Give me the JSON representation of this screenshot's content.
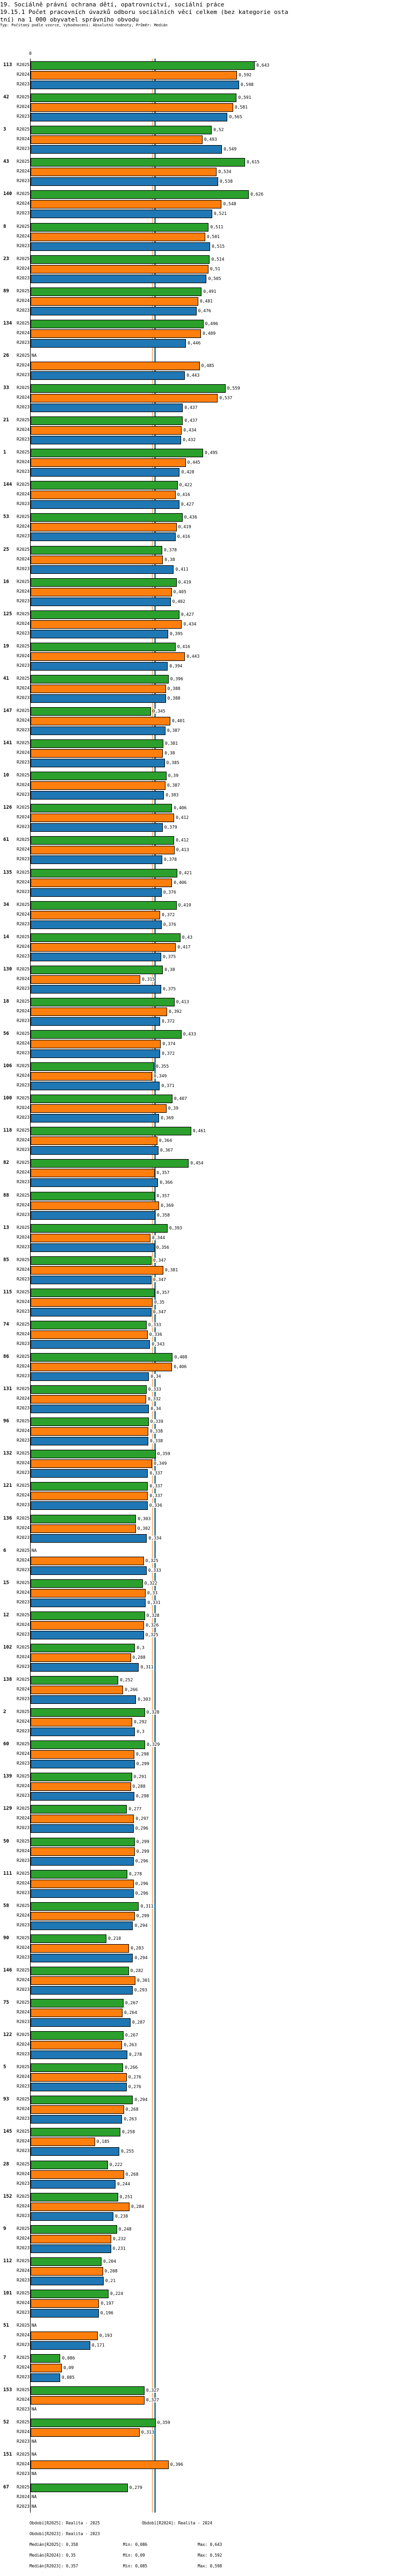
{
  "header": {
    "title_line1": "19. Sociálně právní ochrana dětí, opatrovnictví, sociální práce",
    "title_line2": "19.15.1 Počet pracovních úvazků odboru sociálních věcí celkem (bez kategorie osta",
    "title_line3": "tní) na 1 000 obyvatel správního obvodu",
    "subtitle": "Typ: Počítaný podle vzorce, Vyhodnocení: Absolutní hodnoty, Průměr: Medián"
  },
  "chart_data": {
    "type": "bar",
    "orientation": "horizontal",
    "x_tick_label": "0",
    "na_label": "NA",
    "series": [
      {
        "name": "R2025",
        "color": "#2ca02c"
      },
      {
        "name": "R2024",
        "color": "#ff7f0e"
      },
      {
        "name": "R2023",
        "color": "#1f77b4"
      }
    ],
    "groups": [
      {
        "label": "113",
        "values": [
          0.643,
          0.592,
          0.598
        ]
      },
      {
        "label": "42",
        "values": [
          0.591,
          0.581,
          0.565
        ]
      },
      {
        "label": "3",
        "values": [
          0.52,
          0.493,
          0.549
        ]
      },
      {
        "label": "43",
        "values": [
          0.615,
          0.534,
          0.538
        ]
      },
      {
        "label": "140",
        "values": [
          0.626,
          0.548,
          0.521
        ]
      },
      {
        "label": "8",
        "values": [
          0.511,
          0.501,
          0.515
        ]
      },
      {
        "label": "23",
        "values": [
          0.514,
          0.51,
          0.505
        ]
      },
      {
        "label": "89",
        "values": [
          0.491,
          0.481,
          0.476
        ]
      },
      {
        "label": "134",
        "values": [
          0.496,
          0.489,
          0.446
        ]
      },
      {
        "label": "26",
        "values": [
          null,
          0.485,
          0.443
        ]
      },
      {
        "label": "33",
        "values": [
          0.559,
          0.537,
          0.437
        ]
      },
      {
        "label": "21",
        "values": [
          0.437,
          0.434,
          0.432
        ]
      },
      {
        "label": "1",
        "values": [
          0.495,
          0.445,
          0.428
        ]
      },
      {
        "label": "144",
        "values": [
          0.422,
          0.416,
          0.427
        ]
      },
      {
        "label": "53",
        "values": [
          0.436,
          0.419,
          0.416
        ]
      },
      {
        "label": "25",
        "values": [
          0.378,
          0.38,
          0.411
        ]
      },
      {
        "label": "16",
        "values": [
          0.419,
          0.405,
          0.402
        ]
      },
      {
        "label": "125",
        "values": [
          0.427,
          0.434,
          0.395
        ]
      },
      {
        "label": "19",
        "values": [
          0.416,
          0.443,
          0.394
        ]
      },
      {
        "label": "41",
        "values": [
          0.396,
          0.388,
          0.388
        ]
      },
      {
        "label": "147",
        "values": [
          0.345,
          0.401,
          0.387
        ]
      },
      {
        "label": "141",
        "values": [
          0.381,
          0.38,
          0.385
        ]
      },
      {
        "label": "10",
        "values": [
          0.39,
          0.387,
          0.383
        ]
      },
      {
        "label": "126",
        "values": [
          0.406,
          0.412,
          0.379
        ]
      },
      {
        "label": "61",
        "values": [
          0.412,
          0.413,
          0.378
        ]
      },
      {
        "label": "135",
        "values": [
          0.421,
          0.406,
          0.376
        ]
      },
      {
        "label": "34",
        "values": [
          0.419,
          0.372,
          0.376
        ]
      },
      {
        "label": "14",
        "values": [
          0.43,
          0.417,
          0.375
        ]
      },
      {
        "label": "130",
        "values": [
          0.38,
          0.315,
          0.375
        ]
      },
      {
        "label": "18",
        "values": [
          0.413,
          0.392,
          0.372
        ]
      },
      {
        "label": "56",
        "values": [
          0.433,
          0.374,
          0.372
        ]
      },
      {
        "label": "106",
        "values": [
          0.355,
          0.349,
          0.371
        ]
      },
      {
        "label": "100",
        "values": [
          0.407,
          0.39,
          0.369
        ]
      },
      {
        "label": "118",
        "values": [
          0.461,
          0.364,
          0.367
        ]
      },
      {
        "label": "82",
        "values": [
          0.454,
          0.357,
          0.366
        ]
      },
      {
        "label": "88",
        "values": [
          0.357,
          0.369,
          0.358
        ]
      },
      {
        "label": "13",
        "values": [
          0.393,
          0.344,
          0.356
        ]
      },
      {
        "label": "85",
        "values": [
          0.347,
          0.381,
          0.347
        ]
      },
      {
        "label": "115",
        "values": [
          0.357,
          0.35,
          0.347
        ]
      },
      {
        "label": "74",
        "values": [
          0.333,
          0.336,
          0.343
        ]
      },
      {
        "label": "86",
        "values": [
          0.408,
          0.406,
          0.34
        ]
      },
      {
        "label": "131",
        "values": [
          0.333,
          0.332,
          0.34
        ]
      },
      {
        "label": "96",
        "values": [
          0.339,
          0.338,
          0.338
        ]
      },
      {
        "label": "132",
        "values": [
          0.359,
          0.349,
          0.337
        ]
      },
      {
        "label": "121",
        "values": [
          0.337,
          0.337,
          0.336
        ]
      },
      {
        "label": "136",
        "values": [
          0.303,
          0.302,
          0.334
        ]
      },
      {
        "label": "6",
        "values": [
          null,
          0.325,
          0.333
        ]
      },
      {
        "label": "15",
        "values": [
          0.322,
          0.33,
          0.331
        ]
      },
      {
        "label": "12",
        "values": [
          0.328,
          0.326,
          0.325
        ]
      },
      {
        "label": "102",
        "values": [
          0.3,
          0.288,
          0.311
        ]
      },
      {
        "label": "138",
        "values": [
          0.252,
          0.266,
          0.303
        ]
      },
      {
        "label": "2",
        "values": [
          0.328,
          0.292,
          0.3
        ]
      },
      {
        "label": "60",
        "values": [
          0.329,
          0.298,
          0.299
        ]
      },
      {
        "label": "139",
        "values": [
          0.291,
          0.288,
          0.298
        ]
      },
      {
        "label": "129",
        "values": [
          0.277,
          0.297,
          0.296
        ]
      },
      {
        "label": "50",
        "values": [
          0.299,
          0.299,
          0.296
        ]
      },
      {
        "label": "111",
        "values": [
          0.278,
          0.296,
          0.296
        ]
      },
      {
        "label": "58",
        "values": [
          0.311,
          0.299,
          0.294
        ]
      },
      {
        "label": "90",
        "values": [
          0.218,
          0.283,
          0.294
        ]
      },
      {
        "label": "146",
        "values": [
          0.282,
          0.301,
          0.293
        ]
      },
      {
        "label": "75",
        "values": [
          0.267,
          0.264,
          0.287
        ]
      },
      {
        "label": "122",
        "values": [
          0.267,
          0.263,
          0.278
        ]
      },
      {
        "label": "5",
        "values": [
          0.266,
          0.276,
          0.276
        ]
      },
      {
        "label": "93",
        "values": [
          0.294,
          0.268,
          0.263
        ]
      },
      {
        "label": "145",
        "values": [
          0.258,
          0.185,
          0.255
        ]
      },
      {
        "label": "28",
        "values": [
          0.222,
          0.268,
          0.244
        ]
      },
      {
        "label": "152",
        "values": [
          0.251,
          0.284,
          0.238
        ]
      },
      {
        "label": "9",
        "values": [
          0.248,
          0.232,
          0.231
        ]
      },
      {
        "label": "112",
        "values": [
          0.204,
          0.208,
          0.21
        ]
      },
      {
        "label": "101",
        "values": [
          0.224,
          0.197,
          0.196
        ]
      },
      {
        "label": "51",
        "values": [
          null,
          0.193,
          0.171
        ]
      },
      {
        "label": "7",
        "values": [
          0.086,
          0.09,
          0.085
        ]
      },
      {
        "label": "153",
        "values": [
          0.327,
          0.327,
          null
        ]
      },
      {
        "label": "52",
        "values": [
          0.359,
          0.313,
          null
        ]
      },
      {
        "label": "151",
        "values": [
          null,
          0.396,
          null
        ]
      },
      {
        "label": "67",
        "values": [
          0.279,
          null,
          null
        ]
      }
    ],
    "medians": {
      "R2025": 0.358,
      "R2024": 0.35,
      "R2023": 0.357
    }
  },
  "legend": {
    "period_r2025": "Období[R2025]: Realita - 2025",
    "period_r2024": "Období[R2024]: Realita - 2024",
    "period_r2023": "Období[R2023]: Realita - 2023",
    "median_r2025": "Medián[R2025]: 0,358",
    "min_r2025": "Min: 0,086",
    "max_r2025": "Max: 0,643",
    "median_r2024": "Medián[R2024]: 0,35",
    "min_r2024": "Min: 0,09",
    "max_r2024": "Max: 0,592",
    "median_r2023": "Medián[R2023]: 0,357",
    "min_r2023": "Min: 0,085",
    "max_r2023": "Max: 0,598"
  }
}
